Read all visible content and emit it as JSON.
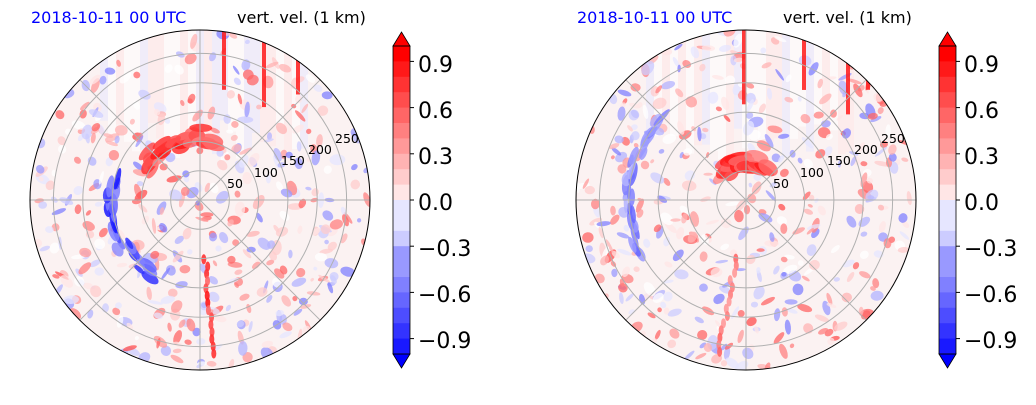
{
  "chart_data": [
    {
      "type": "polar-contourf",
      "title_left": "2018-10-11 00 UTC",
      "title_right": "vert. vel. (1 km)",
      "radial_ticks": [
        "50",
        "100",
        "150",
        "200",
        "250"
      ],
      "radial_tick_values": [
        50,
        100,
        150,
        200,
        250
      ],
      "rlim": [
        0,
        290
      ],
      "angular_gridlines_deg": [
        0,
        45,
        90,
        135,
        180,
        225,
        270,
        315
      ],
      "grid": true,
      "colorbar": {
        "cmap": "bwr",
        "ticks": [
          "0.9",
          "0.6",
          "0.3",
          "0.0",
          "−0.3",
          "−0.6",
          "−0.9"
        ],
        "range": [
          -1.0,
          1.0
        ],
        "extend": "both"
      },
      "features": [
        {
          "kind": "updraft-band",
          "r_km": 110,
          "theta_deg": 250,
          "value": 0.9
        },
        {
          "kind": "downdraft-arc",
          "r_km": 150,
          "theta_deg": 160,
          "value": -0.9
        },
        {
          "kind": "radial-streak",
          "theta_deg": 85,
          "value": 0.9
        }
      ]
    },
    {
      "type": "polar-contourf",
      "title_left": "2018-10-11 00 UTC",
      "title_right": "vert. vel. (1 km)",
      "radial_ticks": [
        "50",
        "100",
        "150",
        "200",
        "250"
      ],
      "radial_tick_values": [
        50,
        100,
        150,
        200,
        250
      ],
      "rlim": [
        0,
        290
      ],
      "angular_gridlines_deg": [
        0,
        45,
        90,
        135,
        180,
        225,
        270,
        315
      ],
      "grid": true,
      "colorbar": {
        "cmap": "bwr",
        "ticks": [
          "0.9",
          "0.6",
          "0.3",
          "0.0",
          "−0.3",
          "−0.6",
          "−0.9"
        ],
        "range": [
          -1.0,
          1.0
        ],
        "extend": "both"
      },
      "features": [
        {
          "kind": "updraft-band",
          "r_km": 60,
          "theta_deg": 270,
          "value": 0.9
        },
        {
          "kind": "downdraft-arc",
          "r_km": 200,
          "theta_deg": 190,
          "value": -0.6
        },
        {
          "kind": "radial-streak",
          "theta_deg": 100,
          "value": 0.6
        }
      ]
    }
  ]
}
